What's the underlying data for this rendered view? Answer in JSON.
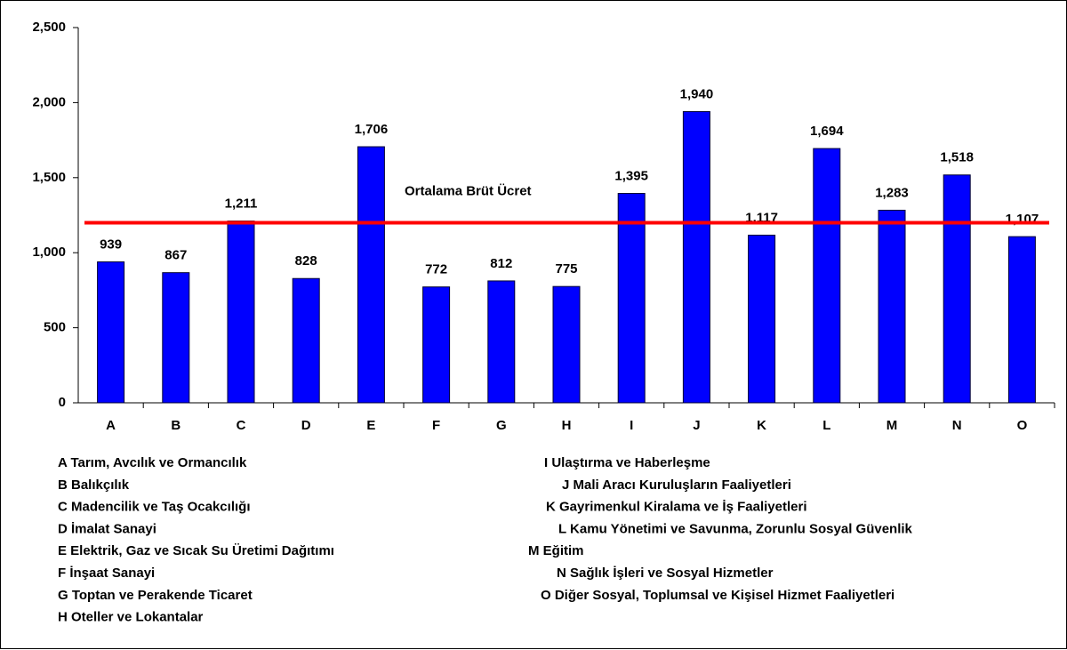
{
  "chart_data": {
    "type": "bar",
    "categories": [
      "A",
      "B",
      "C",
      "D",
      "E",
      "F",
      "G",
      "H",
      "I",
      "J",
      "K",
      "L",
      "M",
      "N",
      "O"
    ],
    "values": [
      939,
      867,
      1211,
      828,
      1706,
      772,
      812,
      775,
      1395,
      1940,
      1117,
      1694,
      1283,
      1518,
      1107
    ],
    "value_labels": [
      "939",
      "867",
      "1,211",
      "828",
      "1,706",
      "772",
      "812",
      "775",
      "1,395",
      "1,940",
      "1,117",
      "1,694",
      "1,283",
      "1,518",
      "1,107"
    ],
    "color": "#0000ff",
    "ylim": [
      0,
      2500
    ],
    "yticks": [
      0,
      500,
      {
        "value": 1000,
        "label": "1,000"
      },
      {
        "value": 1500,
        "label": "1,500"
      },
      {
        "value": 2000,
        "label": "2,000"
      },
      {
        "value": 2500,
        "label": "2,500"
      }
    ],
    "reference_line": {
      "value": 1200,
      "label": "Ortalama Brüt Ücret",
      "color": "#ff0000"
    },
    "notes": [
      "A Tarım, Avcılık ve Ormancılık",
      "B Balıkçılık",
      "C Madencilik ve Taş Ocakcılığı",
      "D İmalat Sanayi",
      "E Elektrik, Gaz ve Sıcak Su Üretimi Dağıtımı",
      "F İnşaat Sanayi",
      "G Toptan ve Perakende Ticaret",
      "H Oteller ve Lokantalar",
      "I Ulaştırma ve Haberleşme",
      "J Mali Aracı Kuruluşların Faaliyetleri",
      "K Gayrimenkul Kiralama ve İş Faaliyetleri",
      "L Kamu Yönetimi ve Savunma, Zorunlu Sosyal Güvenlik",
      "M Eğitim",
      "N Sağlık İşleri ve Sosyal Hizmetler",
      "O Diğer Sosyal, Toplumsal ve Kişisel Hizmet Faaliyetleri"
    ]
  }
}
